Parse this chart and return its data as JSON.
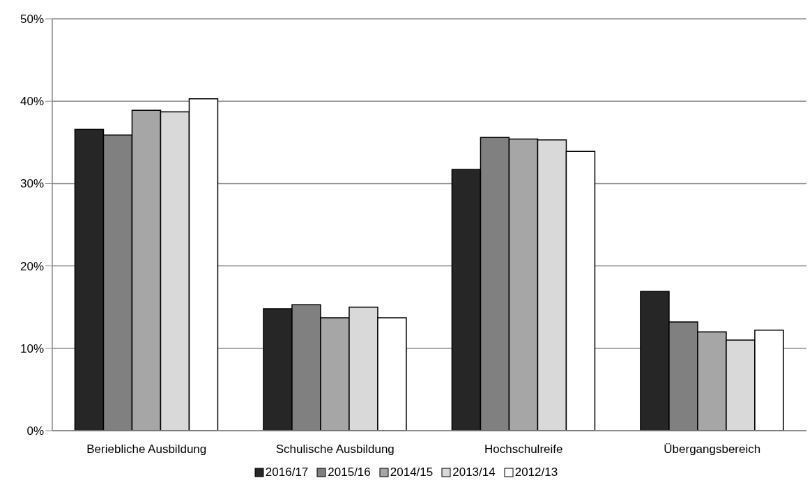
{
  "chart_data": {
    "type": "bar",
    "categories": [
      "Beriebliche Ausbildung",
      "Schulische Ausbildung",
      "Hochschulreife",
      "Übergangsbereich"
    ],
    "series": [
      {
        "name": "2016/17",
        "color": "#262626",
        "values": [
          36.6,
          14.8,
          31.7,
          16.9
        ]
      },
      {
        "name": "2015/16",
        "color": "#808080",
        "values": [
          35.9,
          15.3,
          35.6,
          13.2
        ]
      },
      {
        "name": "2014/15",
        "color": "#a6a6a6",
        "values": [
          38.9,
          13.7,
          35.4,
          12.0
        ]
      },
      {
        "name": "2013/14",
        "color": "#d9d9d9",
        "values": [
          38.7,
          15.0,
          35.3,
          11.0
        ]
      },
      {
        "name": "2012/13",
        "color": "#ffffff",
        "values": [
          40.3,
          13.7,
          33.9,
          12.2
        ]
      }
    ],
    "ylim": [
      0,
      50
    ],
    "yticks": [
      {
        "value": 0,
        "label": "0%"
      },
      {
        "value": 10,
        "label": "10%"
      },
      {
        "value": 20,
        "label": "20%"
      },
      {
        "value": 30,
        "label": "30%"
      },
      {
        "value": 40,
        "label": "40%"
      },
      {
        "value": 50,
        "label": "50%"
      }
    ],
    "grid": "y",
    "legend": "bottom"
  }
}
